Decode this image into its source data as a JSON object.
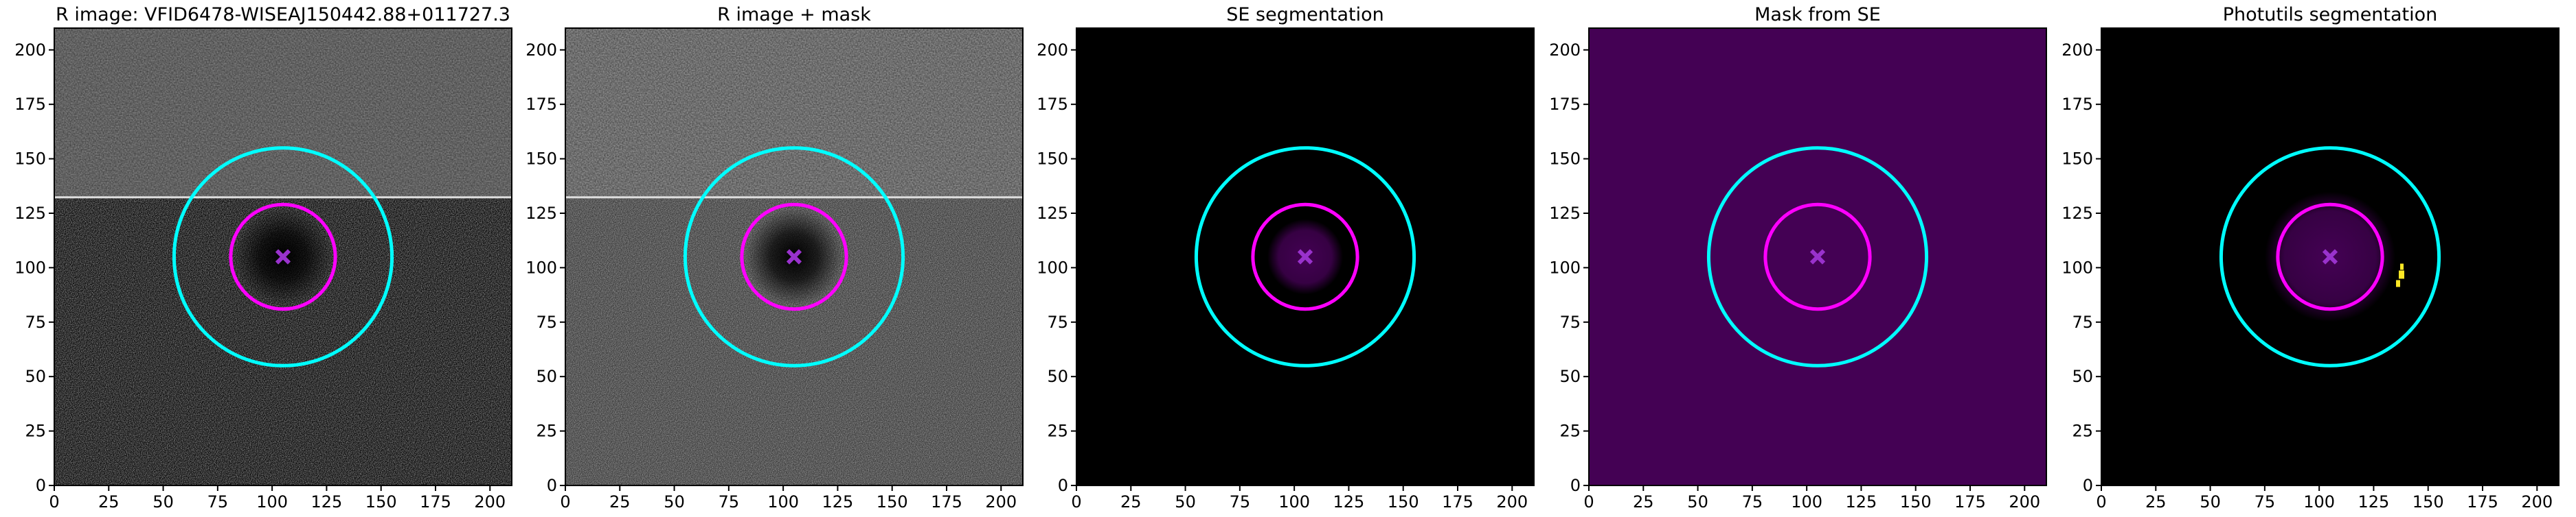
{
  "chart_data": [
    {
      "type": "image",
      "title": "R image: VFID6478-WISEAJ150442.88+011727.3",
      "xlim": [
        0,
        210
      ],
      "ylim": [
        0,
        210
      ],
      "xticks": [
        0,
        25,
        50,
        75,
        100,
        125,
        150,
        175,
        200
      ],
      "yticks": [
        0,
        25,
        50,
        75,
        100,
        125,
        150,
        175,
        200
      ],
      "circles": [
        {
          "color": "#00ffff",
          "center": [
            105,
            105
          ],
          "radius": 50
        },
        {
          "color": "#ff00ff",
          "center": [
            105,
            105
          ],
          "radius": 24
        }
      ],
      "markers": [
        {
          "color": "#9932cc",
          "x": 105,
          "y": 105
        }
      ]
    },
    {
      "type": "image",
      "title": "R image + mask",
      "xlim": [
        0,
        210
      ],
      "ylim": [
        0,
        210
      ],
      "xticks": [
        0,
        25,
        50,
        75,
        100,
        125,
        150,
        175,
        200
      ],
      "yticks": [
        0,
        25,
        50,
        75,
        100,
        125,
        150,
        175,
        200
      ],
      "circles": [
        {
          "color": "#00ffff",
          "center": [
            105,
            105
          ],
          "radius": 50
        },
        {
          "color": "#ff00ff",
          "center": [
            105,
            105
          ],
          "radius": 24
        }
      ],
      "markers": [
        {
          "color": "#9932cc",
          "x": 105,
          "y": 105
        }
      ]
    },
    {
      "type": "image",
      "title": "SE segmentation",
      "xlim": [
        0,
        210
      ],
      "ylim": [
        0,
        210
      ],
      "xticks": [
        0,
        25,
        50,
        75,
        100,
        125,
        150,
        175,
        200
      ],
      "yticks": [
        0,
        25,
        50,
        75,
        100,
        125,
        150,
        175,
        200
      ],
      "circles": [
        {
          "color": "#00ffff",
          "center": [
            105,
            105
          ],
          "radius": 50
        },
        {
          "color": "#ff00ff",
          "center": [
            105,
            105
          ],
          "radius": 24
        }
      ],
      "markers": [
        {
          "color": "#9932cc",
          "x": 105,
          "y": 105
        }
      ]
    },
    {
      "type": "image",
      "title": "Mask from SE",
      "xlim": [
        0,
        210
      ],
      "ylim": [
        0,
        210
      ],
      "xticks": [
        0,
        25,
        50,
        75,
        100,
        125,
        150,
        175,
        200
      ],
      "yticks": [
        0,
        25,
        50,
        75,
        100,
        125,
        150,
        175,
        200
      ],
      "circles": [
        {
          "color": "#00ffff",
          "center": [
            105,
            105
          ],
          "radius": 50
        },
        {
          "color": "#ff00ff",
          "center": [
            105,
            105
          ],
          "radius": 24
        }
      ],
      "markers": [
        {
          "color": "#9932cc",
          "x": 105,
          "y": 105
        }
      ]
    },
    {
      "type": "image",
      "title": "Photutils segmentation",
      "xlim": [
        0,
        210
      ],
      "ylim": [
        0,
        210
      ],
      "xticks": [
        0,
        25,
        50,
        75,
        100,
        125,
        150,
        175,
        200
      ],
      "yticks": [
        0,
        25,
        50,
        75,
        100,
        125,
        150,
        175,
        200
      ],
      "circles": [
        {
          "color": "#00ffff",
          "center": [
            105,
            105
          ],
          "radius": 50
        },
        {
          "color": "#ff00ff",
          "center": [
            105,
            105
          ],
          "radius": 24
        }
      ],
      "markers": [
        {
          "color": "#9932cc",
          "x": 105,
          "y": 105
        }
      ]
    }
  ]
}
